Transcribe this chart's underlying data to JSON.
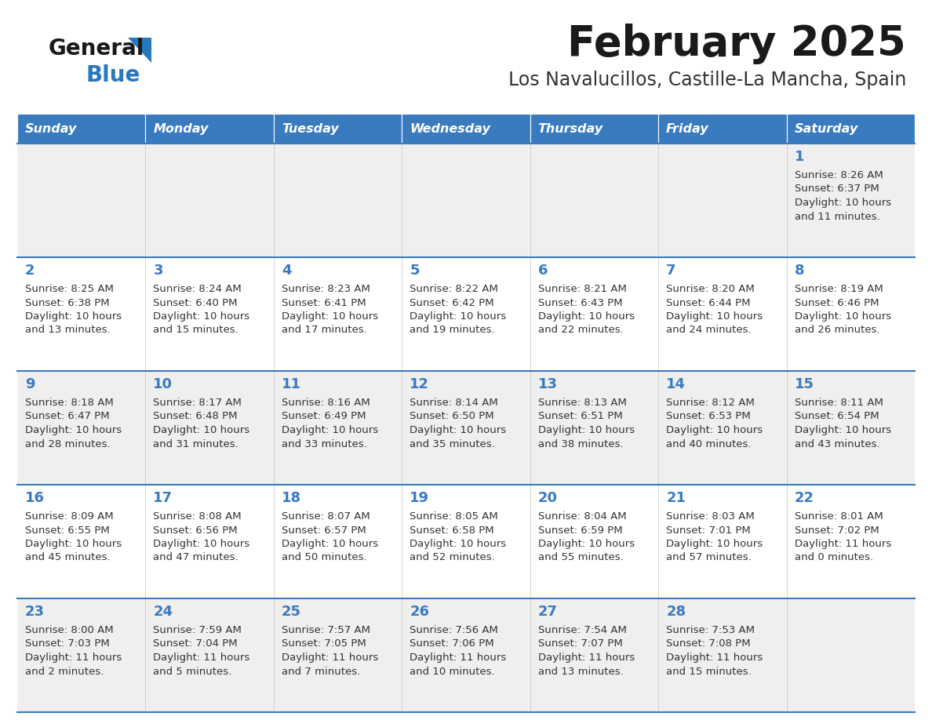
{
  "title": "February 2025",
  "subtitle": "Los Navalucillos, Castille-La Mancha, Spain",
  "days_of_week": [
    "Sunday",
    "Monday",
    "Tuesday",
    "Wednesday",
    "Thursday",
    "Friday",
    "Saturday"
  ],
  "header_bg": "#3a7abf",
  "header_text": "#ffffff",
  "row_bg_odd": "#efefef",
  "row_bg_even": "#ffffff",
  "cell_border_color": "#3a7abf",
  "day_number_color": "#3a7abf",
  "info_text_color": "#333333",
  "title_color": "#1a1a1a",
  "subtitle_color": "#333333",
  "logo_general_color": "#1a1a1a",
  "logo_blue_color": "#2878be",
  "weeks": [
    [
      {
        "day": null,
        "sunrise": null,
        "sunset": null,
        "daylight_line1": null,
        "daylight_line2": null
      },
      {
        "day": null,
        "sunrise": null,
        "sunset": null,
        "daylight_line1": null,
        "daylight_line2": null
      },
      {
        "day": null,
        "sunrise": null,
        "sunset": null,
        "daylight_line1": null,
        "daylight_line2": null
      },
      {
        "day": null,
        "sunrise": null,
        "sunset": null,
        "daylight_line1": null,
        "daylight_line2": null
      },
      {
        "day": null,
        "sunrise": null,
        "sunset": null,
        "daylight_line1": null,
        "daylight_line2": null
      },
      {
        "day": null,
        "sunrise": null,
        "sunset": null,
        "daylight_line1": null,
        "daylight_line2": null
      },
      {
        "day": "1",
        "sunrise": "Sunrise: 8:26 AM",
        "sunset": "Sunset: 6:37 PM",
        "daylight_line1": "Daylight: 10 hours",
        "daylight_line2": "and 11 minutes."
      }
    ],
    [
      {
        "day": "2",
        "sunrise": "Sunrise: 8:25 AM",
        "sunset": "Sunset: 6:38 PM",
        "daylight_line1": "Daylight: 10 hours",
        "daylight_line2": "and 13 minutes."
      },
      {
        "day": "3",
        "sunrise": "Sunrise: 8:24 AM",
        "sunset": "Sunset: 6:40 PM",
        "daylight_line1": "Daylight: 10 hours",
        "daylight_line2": "and 15 minutes."
      },
      {
        "day": "4",
        "sunrise": "Sunrise: 8:23 AM",
        "sunset": "Sunset: 6:41 PM",
        "daylight_line1": "Daylight: 10 hours",
        "daylight_line2": "and 17 minutes."
      },
      {
        "day": "5",
        "sunrise": "Sunrise: 8:22 AM",
        "sunset": "Sunset: 6:42 PM",
        "daylight_line1": "Daylight: 10 hours",
        "daylight_line2": "and 19 minutes."
      },
      {
        "day": "6",
        "sunrise": "Sunrise: 8:21 AM",
        "sunset": "Sunset: 6:43 PM",
        "daylight_line1": "Daylight: 10 hours",
        "daylight_line2": "and 22 minutes."
      },
      {
        "day": "7",
        "sunrise": "Sunrise: 8:20 AM",
        "sunset": "Sunset: 6:44 PM",
        "daylight_line1": "Daylight: 10 hours",
        "daylight_line2": "and 24 minutes."
      },
      {
        "day": "8",
        "sunrise": "Sunrise: 8:19 AM",
        "sunset": "Sunset: 6:46 PM",
        "daylight_line1": "Daylight: 10 hours",
        "daylight_line2": "and 26 minutes."
      }
    ],
    [
      {
        "day": "9",
        "sunrise": "Sunrise: 8:18 AM",
        "sunset": "Sunset: 6:47 PM",
        "daylight_line1": "Daylight: 10 hours",
        "daylight_line2": "and 28 minutes."
      },
      {
        "day": "10",
        "sunrise": "Sunrise: 8:17 AM",
        "sunset": "Sunset: 6:48 PM",
        "daylight_line1": "Daylight: 10 hours",
        "daylight_line2": "and 31 minutes."
      },
      {
        "day": "11",
        "sunrise": "Sunrise: 8:16 AM",
        "sunset": "Sunset: 6:49 PM",
        "daylight_line1": "Daylight: 10 hours",
        "daylight_line2": "and 33 minutes."
      },
      {
        "day": "12",
        "sunrise": "Sunrise: 8:14 AM",
        "sunset": "Sunset: 6:50 PM",
        "daylight_line1": "Daylight: 10 hours",
        "daylight_line2": "and 35 minutes."
      },
      {
        "day": "13",
        "sunrise": "Sunrise: 8:13 AM",
        "sunset": "Sunset: 6:51 PM",
        "daylight_line1": "Daylight: 10 hours",
        "daylight_line2": "and 38 minutes."
      },
      {
        "day": "14",
        "sunrise": "Sunrise: 8:12 AM",
        "sunset": "Sunset: 6:53 PM",
        "daylight_line1": "Daylight: 10 hours",
        "daylight_line2": "and 40 minutes."
      },
      {
        "day": "15",
        "sunrise": "Sunrise: 8:11 AM",
        "sunset": "Sunset: 6:54 PM",
        "daylight_line1": "Daylight: 10 hours",
        "daylight_line2": "and 43 minutes."
      }
    ],
    [
      {
        "day": "16",
        "sunrise": "Sunrise: 8:09 AM",
        "sunset": "Sunset: 6:55 PM",
        "daylight_line1": "Daylight: 10 hours",
        "daylight_line2": "and 45 minutes."
      },
      {
        "day": "17",
        "sunrise": "Sunrise: 8:08 AM",
        "sunset": "Sunset: 6:56 PM",
        "daylight_line1": "Daylight: 10 hours",
        "daylight_line2": "and 47 minutes."
      },
      {
        "day": "18",
        "sunrise": "Sunrise: 8:07 AM",
        "sunset": "Sunset: 6:57 PM",
        "daylight_line1": "Daylight: 10 hours",
        "daylight_line2": "and 50 minutes."
      },
      {
        "day": "19",
        "sunrise": "Sunrise: 8:05 AM",
        "sunset": "Sunset: 6:58 PM",
        "daylight_line1": "Daylight: 10 hours",
        "daylight_line2": "and 52 minutes."
      },
      {
        "day": "20",
        "sunrise": "Sunrise: 8:04 AM",
        "sunset": "Sunset: 6:59 PM",
        "daylight_line1": "Daylight: 10 hours",
        "daylight_line2": "and 55 minutes."
      },
      {
        "day": "21",
        "sunrise": "Sunrise: 8:03 AM",
        "sunset": "Sunset: 7:01 PM",
        "daylight_line1": "Daylight: 10 hours",
        "daylight_line2": "and 57 minutes."
      },
      {
        "day": "22",
        "sunrise": "Sunrise: 8:01 AM",
        "sunset": "Sunset: 7:02 PM",
        "daylight_line1": "Daylight: 11 hours",
        "daylight_line2": "and 0 minutes."
      }
    ],
    [
      {
        "day": "23",
        "sunrise": "Sunrise: 8:00 AM",
        "sunset": "Sunset: 7:03 PM",
        "daylight_line1": "Daylight: 11 hours",
        "daylight_line2": "and 2 minutes."
      },
      {
        "day": "24",
        "sunrise": "Sunrise: 7:59 AM",
        "sunset": "Sunset: 7:04 PM",
        "daylight_line1": "Daylight: 11 hours",
        "daylight_line2": "and 5 minutes."
      },
      {
        "day": "25",
        "sunrise": "Sunrise: 7:57 AM",
        "sunset": "Sunset: 7:05 PM",
        "daylight_line1": "Daylight: 11 hours",
        "daylight_line2": "and 7 minutes."
      },
      {
        "day": "26",
        "sunrise": "Sunrise: 7:56 AM",
        "sunset": "Sunset: 7:06 PM",
        "daylight_line1": "Daylight: 11 hours",
        "daylight_line2": "and 10 minutes."
      },
      {
        "day": "27",
        "sunrise": "Sunrise: 7:54 AM",
        "sunset": "Sunset: 7:07 PM",
        "daylight_line1": "Daylight: 11 hours",
        "daylight_line2": "and 13 minutes."
      },
      {
        "day": "28",
        "sunrise": "Sunrise: 7:53 AM",
        "sunset": "Sunset: 7:08 PM",
        "daylight_line1": "Daylight: 11 hours",
        "daylight_line2": "and 15 minutes."
      },
      {
        "day": null,
        "sunrise": null,
        "sunset": null,
        "daylight_line1": null,
        "daylight_line2": null
      }
    ]
  ]
}
